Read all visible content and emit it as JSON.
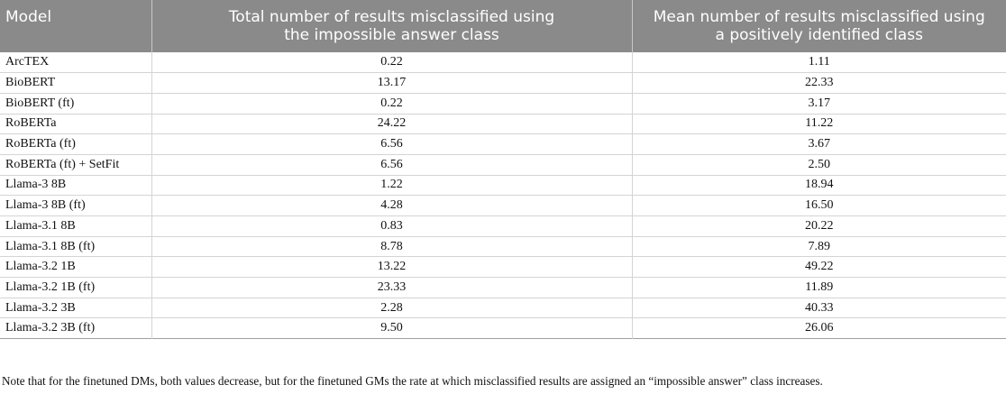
{
  "table": {
    "headers": {
      "model": "Model",
      "impossible_line1": "Total number of results misclassified using",
      "impossible_line2": "the impossible answer class",
      "positive_line1": "Mean number of results misclassified using",
      "positive_line2": "a positively identified class"
    },
    "rows": [
      {
        "model": "ArcTEX",
        "impossible": "0.22",
        "positive": "1.11"
      },
      {
        "model": "BioBERT",
        "impossible": "13.17",
        "positive": "22.33"
      },
      {
        "model": "BioBERT (ft)",
        "impossible": "0.22",
        "positive": "3.17"
      },
      {
        "model": "RoBERTa",
        "impossible": "24.22",
        "positive": "11.22"
      },
      {
        "model": "RoBERTa (ft)",
        "impossible": "6.56",
        "positive": "3.67"
      },
      {
        "model": "RoBERTa (ft) + SetFit",
        "impossible": "6.56",
        "positive": "2.50"
      },
      {
        "model": "Llama-3 8B",
        "impossible": "1.22",
        "positive": "18.94"
      },
      {
        "model": "Llama-3 8B (ft)",
        "impossible": "4.28",
        "positive": "16.50"
      },
      {
        "model": "Llama-3.1 8B",
        "impossible": "0.83",
        "positive": "20.22"
      },
      {
        "model": "Llama-3.1 8B (ft)",
        "impossible": "8.78",
        "positive": "7.89"
      },
      {
        "model": "Llama-3.2 1B",
        "impossible": "13.22",
        "positive": "49.22"
      },
      {
        "model": "Llama-3.2 1B (ft)",
        "impossible": "23.33",
        "positive": "11.89"
      },
      {
        "model": "Llama-3.2 3B",
        "impossible": "2.28",
        "positive": "40.33"
      },
      {
        "model": "Llama-3.2 3B (ft)",
        "impossible": "9.50",
        "positive": "26.06"
      }
    ]
  },
  "note": "Note that for the finetuned DMs, both values decrease, but for the finetuned GMs the rate at which misclassified results are assigned an “impossible answer” class increases."
}
